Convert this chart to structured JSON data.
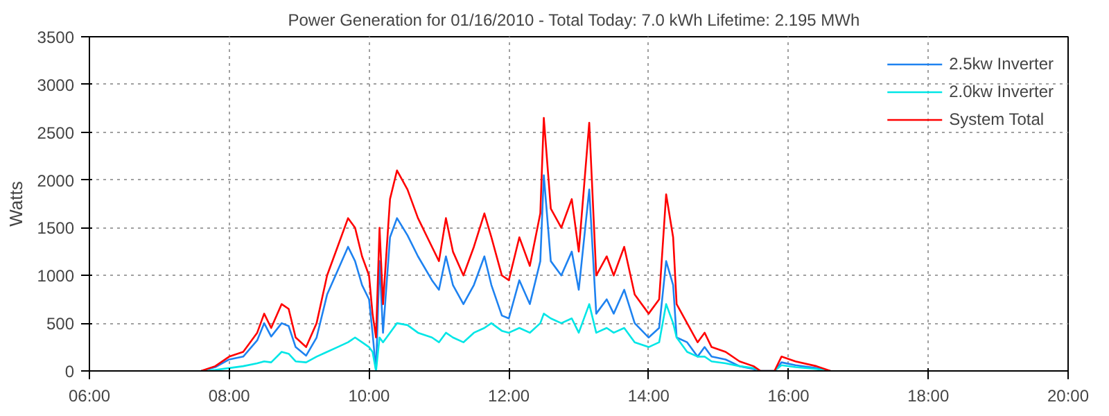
{
  "chart_data": {
    "type": "line",
    "title": "Power Generation for 01/16/2010 - Total Today: 7.0 kWh   Lifetime: 2.195 MWh",
    "ylabel": "Watts",
    "x": [
      7.6,
      7.8,
      8.0,
      8.2,
      8.4,
      8.5,
      8.6,
      8.75,
      8.85,
      8.95,
      9.1,
      9.25,
      9.4,
      9.55,
      9.7,
      9.8,
      9.9,
      10.0,
      10.05,
      10.1,
      10.15,
      10.2,
      10.3,
      10.4,
      10.55,
      10.7,
      10.9,
      11.0,
      11.1,
      11.2,
      11.35,
      11.5,
      11.65,
      11.75,
      11.9,
      12.0,
      12.15,
      12.3,
      12.45,
      12.5,
      12.6,
      12.75,
      12.9,
      13.0,
      13.15,
      13.25,
      13.4,
      13.5,
      13.65,
      13.8,
      14.0,
      14.15,
      14.25,
      14.35,
      14.4,
      14.55,
      14.7,
      14.8,
      14.9,
      15.1,
      15.3,
      15.5,
      15.6,
      15.8,
      15.9,
      16.1,
      16.4,
      16.6
    ],
    "series": [
      {
        "name": "2.5kw Inverter",
        "color": "#1e82f0",
        "values": [
          0,
          40,
          120,
          150,
          320,
          500,
          360,
          500,
          470,
          250,
          160,
          350,
          800,
          1050,
          1300,
          1150,
          900,
          750,
          400,
          0,
          1150,
          400,
          1400,
          1600,
          1420,
          1200,
          950,
          850,
          1200,
          900,
          700,
          900,
          1200,
          900,
          580,
          550,
          950,
          700,
          1150,
          2050,
          1150,
          1000,
          1250,
          850,
          1900,
          600,
          750,
          600,
          850,
          500,
          350,
          450,
          1150,
          900,
          350,
          300,
          150,
          250,
          150,
          120,
          50,
          20,
          0,
          0,
          90,
          60,
          30,
          0
        ]
      },
      {
        "name": "2.0kw Inverter",
        "color": "#00e6e6",
        "values": [
          0,
          10,
          30,
          50,
          80,
          100,
          90,
          200,
          180,
          100,
          90,
          150,
          200,
          250,
          300,
          350,
          300,
          250,
          200,
          0,
          350,
          300,
          400,
          500,
          480,
          400,
          350,
          300,
          400,
          350,
          300,
          400,
          450,
          500,
          420,
          400,
          450,
          400,
          500,
          600,
          550,
          500,
          550,
          400,
          700,
          400,
          450,
          400,
          450,
          300,
          250,
          300,
          700,
          500,
          350,
          200,
          150,
          150,
          100,
          80,
          50,
          30,
          0,
          0,
          60,
          40,
          20,
          0
        ]
      },
      {
        "name": "System Total",
        "color": "#ff0000",
        "values": [
          0,
          50,
          150,
          200,
          400,
          600,
          450,
          700,
          650,
          350,
          250,
          500,
          1000,
          1300,
          1600,
          1500,
          1200,
          1000,
          600,
          350,
          1500,
          700,
          1800,
          2100,
          1900,
          1600,
          1300,
          1150,
          1600,
          1250,
          1000,
          1300,
          1650,
          1400,
          1000,
          950,
          1400,
          1100,
          1650,
          2650,
          1700,
          1500,
          1800,
          1250,
          2600,
          1000,
          1200,
          1000,
          1300,
          800,
          600,
          750,
          1850,
          1400,
          700,
          500,
          300,
          400,
          250,
          200,
          100,
          50,
          0,
          0,
          150,
          100,
          50,
          0
        ]
      }
    ],
    "xlim": [
      6,
      20
    ],
    "xticks": [
      {
        "value": 6,
        "label": "06:00"
      },
      {
        "value": 8,
        "label": "08:00"
      },
      {
        "value": 10,
        "label": "10:00"
      },
      {
        "value": 12,
        "label": "12:00"
      },
      {
        "value": 14,
        "label": "14:00"
      },
      {
        "value": 16,
        "label": "16:00"
      },
      {
        "value": 18,
        "label": "18:00"
      },
      {
        "value": 20,
        "label": "20:00"
      }
    ],
    "ylim": [
      0,
      3500
    ],
    "yticks": [
      0,
      500,
      1000,
      1500,
      2000,
      2500,
      3000,
      3500
    ],
    "grid": true,
    "legend": "top right",
    "line_style": "solid",
    "marker": "none"
  }
}
